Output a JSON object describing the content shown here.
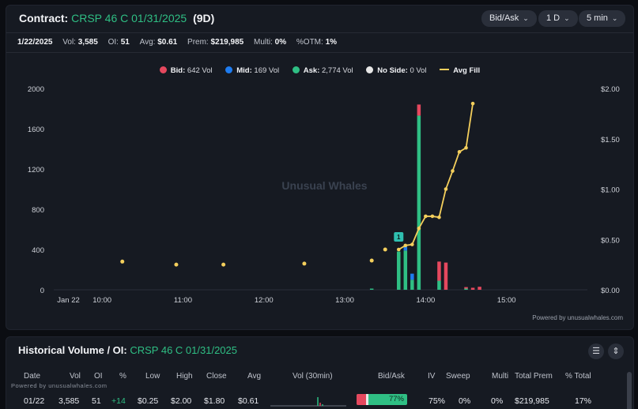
{
  "header": {
    "label": "Contract:",
    "contract": "CRSP 46 C 01/31/2025",
    "days": "(9D)",
    "controls": [
      {
        "label": "Bid/Ask"
      },
      {
        "label": "1 D"
      },
      {
        "label": "5 min"
      }
    ]
  },
  "stats": {
    "date": "1/22/2025",
    "vol_label": "Vol:",
    "vol": "3,585",
    "oi_label": "OI:",
    "oi": "51",
    "avg_label": "Avg:",
    "avg": "$0.61",
    "prem_label": "Prem:",
    "prem": "$219,985",
    "multi_label": "Multi:",
    "multi": "0%",
    "otm_label": "%OTM:",
    "otm": "1%"
  },
  "legend": [
    {
      "label": "Bid:",
      "value": "642 Vol",
      "color": "#e5485e",
      "kind": "dot"
    },
    {
      "label": "Mid:",
      "value": "169 Vol",
      "color": "#1e7cf0",
      "kind": "dot"
    },
    {
      "label": "Ask:",
      "value": "2,774 Vol",
      "color": "#2fbf84",
      "kind": "dot"
    },
    {
      "label": "No Side:",
      "value": "0 Vol",
      "color": "#e6e6e6",
      "kind": "dot"
    },
    {
      "label": "Avg Fill",
      "value": "",
      "color": "#f4cf5c",
      "kind": "line"
    }
  ],
  "chart_data": {
    "type": "bar",
    "watermark": "Unusual Whales",
    "marker_label": "1",
    "x_ticks": [
      "Jan 22",
      "10:00",
      "11:00",
      "12:00",
      "13:00",
      "14:00",
      "15:00"
    ],
    "y_left": {
      "ylim": [
        0,
        2000
      ],
      "ticks": [
        "0",
        "400",
        "800",
        "1200",
        "1600",
        "2000"
      ]
    },
    "y_right": {
      "ylim": [
        0,
        2.0
      ],
      "ticks": [
        "$0.00",
        "$0.50",
        "$1.00",
        "$1.50",
        "$2.00"
      ]
    },
    "bars": [
      {
        "time": "13:20",
        "ask": 5,
        "bid": 0,
        "mid": 0
      },
      {
        "time": "13:40",
        "ask": 380,
        "bid": 0,
        "mid": 0
      },
      {
        "time": "13:45",
        "ask": 390,
        "bid": 0,
        "mid": 40
      },
      {
        "time": "13:50",
        "ask": 100,
        "bid": 0,
        "mid": 60
      },
      {
        "time": "13:55",
        "ask": 1730,
        "bid": 110,
        "mid": 0
      },
      {
        "time": "14:10",
        "ask": 90,
        "bid": 190,
        "mid": 0
      },
      {
        "time": "14:15",
        "ask": 0,
        "bid": 270,
        "mid": 0
      },
      {
        "time": "14:30",
        "ask": 10,
        "bid": 15,
        "mid": 0
      },
      {
        "time": "14:35",
        "ask": 0,
        "bid": 20,
        "mid": 0
      },
      {
        "time": "14:40",
        "ask": 0,
        "bid": 30,
        "mid": 0
      }
    ],
    "avg_fill_scatter": [
      {
        "time": "10:15",
        "price": 0.28
      },
      {
        "time": "10:55",
        "price": 0.25
      },
      {
        "time": "11:30",
        "price": 0.25
      },
      {
        "time": "12:30",
        "price": 0.26
      },
      {
        "time": "13:20",
        "price": 0.29
      },
      {
        "time": "13:30",
        "price": 0.4
      }
    ],
    "avg_fill_line": [
      {
        "time": "13:40",
        "price": 0.4
      },
      {
        "time": "13:45",
        "price": 0.44
      },
      {
        "time": "13:50",
        "price": 0.45
      },
      {
        "time": "13:55",
        "price": 0.61
      },
      {
        "time": "14:00",
        "price": 0.73
      },
      {
        "time": "14:05",
        "price": 0.73
      },
      {
        "time": "14:10",
        "price": 0.72
      },
      {
        "time": "14:15",
        "price": 1.0
      },
      {
        "time": "14:20",
        "price": 1.18
      },
      {
        "time": "14:25",
        "price": 1.37
      },
      {
        "time": "14:30",
        "price": 1.41
      },
      {
        "time": "14:35",
        "price": 1.85
      }
    ]
  },
  "powered": "Powered by unusualwhales.com",
  "history": {
    "title": "Historical Volume / OI:",
    "contract": "CRSP 46 C 01/31/2025",
    "watermark": "Powered by unusualwhales.com",
    "columns": [
      "Date",
      "Vol",
      "OI",
      "%",
      "Low",
      "High",
      "Close",
      "Avg",
      "Vol (30min)",
      "Bid/Ask",
      "IV",
      "Sweep",
      "Multi",
      "Total Prem",
      "% Total"
    ],
    "row": {
      "date": "01/22",
      "vol": "3,585",
      "oi": "51",
      "pct": "+14",
      "low": "$0.25",
      "high": "$2.00",
      "close": "$1.80",
      "avg": "$0.61",
      "bidask_pct": "77%",
      "bidask_fraction": 0.77,
      "iv": "75%",
      "sweep": "0%",
      "multi": "0%",
      "total_prem": "$219,985",
      "pct_total": "17%"
    }
  }
}
